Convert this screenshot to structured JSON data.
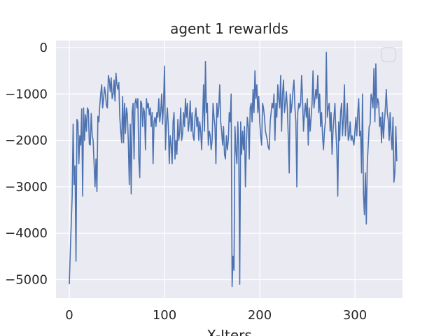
{
  "chart_data": {
    "type": "line",
    "title": "agent 1 rewarlds",
    "xlabel": "X-Iters",
    "ylabel": "",
    "xlim": [
      -14,
      350
    ],
    "ylim": [
      -5400,
      150
    ],
    "x_ticks": [
      0,
      100,
      200,
      300
    ],
    "y_ticks": [
      0,
      -1000,
      -2000,
      -3000,
      -4000,
      -5000
    ],
    "x_tick_labels": [
      "0",
      "100",
      "200",
      "300"
    ],
    "y_tick_labels": [
      "0",
      "−1000",
      "−2000",
      "−3000",
      "−4000",
      "−5000"
    ],
    "grid": true,
    "legend": "top-right, empty",
    "background_color": "#eaeaf2",
    "grid_color": "#ffffff",
    "line_color": "#4c72b0",
    "series": [
      {
        "values": [
          -5100,
          -4400,
          -3800,
          -3200,
          -1650,
          -2950,
          -2550,
          -4600,
          -1550,
          -1600,
          -2500,
          -1900,
          -2100,
          -1320,
          -3200,
          -1300,
          -2000,
          -1450,
          -1800,
          -1300,
          -1350,
          -2080,
          -2100,
          -1420,
          -1900,
          -2000,
          -2500,
          -3000,
          -2400,
          -3100,
          -1480,
          -1600,
          -1250,
          -1000,
          -800,
          -1300,
          -1100,
          -850,
          -1000,
          -1250,
          -1300,
          -600,
          -700,
          -950,
          -650,
          -1100,
          -1000,
          -700,
          -1150,
          -550,
          -800,
          -900,
          -750,
          -1500,
          -1800,
          -2050,
          -1050,
          -2050,
          -1200,
          -1850,
          -1300,
          -1450,
          -2050,
          -2950,
          -1650,
          -3150,
          -1400,
          -1200,
          -2400,
          -1200,
          -1100,
          -1300,
          -1100,
          -2400,
          -2800,
          -1150,
          -1200,
          -1700,
          -1300,
          -1400,
          -2200,
          -1100,
          -1300,
          -1200,
          -1450,
          -1300,
          -1700,
          -1400,
          -2500,
          -1600,
          -1500,
          -1700,
          -1400,
          -1500,
          -1100,
          -1600,
          -1400,
          -1000,
          -1650,
          -1200,
          -400,
          -2200,
          -1600,
          -1300,
          -1700,
          -2500,
          -1900,
          -2100,
          -2500,
          -1600,
          -1400,
          -2400,
          -2000,
          -2300,
          -1550,
          -2000,
          -1800,
          -1300,
          -2000,
          -1850,
          -1400,
          -1700,
          -1100,
          -1500,
          -1200,
          -1800,
          -1600,
          -1150,
          -1800,
          -1400,
          -1900,
          -2000,
          -1500,
          -1300,
          -1700,
          -1500,
          -2000,
          -1600,
          -1800,
          -2200,
          -1600,
          -800,
          -1800,
          -300,
          -1400,
          -1200,
          -2100,
          -1800,
          -1900,
          -2200,
          -2000,
          -1200,
          -1500,
          -1700,
          -2500,
          -1200,
          -1500,
          -1300,
          -800,
          -1600,
          -1800,
          -2100,
          -1700,
          -2300,
          -2400,
          -1900,
          -2200,
          -2000,
          -1400,
          -1600,
          -1000,
          -5150,
          -4500,
          -4800,
          -1700,
          -2200,
          -2500,
          -1600,
          -2200,
          -5100,
          -1600,
          -2300,
          -1800,
          -2200,
          -1700,
          -3000,
          -2100,
          -1500,
          -1700,
          -2400,
          -1300,
          -1200,
          -1600,
          -900,
          -1400,
          -500,
          -1100,
          -800,
          -1400,
          -1050,
          -1600,
          -1900,
          -2100,
          -1200,
          -1300,
          -1500,
          -1800,
          -1900,
          -2000,
          -2150,
          -2200,
          -1600,
          -1400,
          -1200,
          -1300,
          -1000,
          -2000,
          -1200,
          -1500,
          -800,
          -1100,
          -1300,
          -600,
          -1800,
          -1000,
          -700,
          -1400,
          -1200,
          -950,
          -1300,
          -1900,
          -2700,
          -1000,
          -1400,
          -1200,
          -900,
          -700,
          -1300,
          -1600,
          -3000,
          -1400,
          -1200,
          -1300,
          -1200,
          -600,
          -1100,
          -1800,
          -1400,
          -1200,
          -1500,
          -1100,
          -2100,
          -1300,
          -1800,
          -1500,
          -1200,
          -500,
          -1300,
          -1100,
          -900,
          -1100,
          -600,
          -1400,
          -1000,
          -1700,
          -1400,
          -1900,
          -2200,
          -1800,
          -1600,
          -100,
          -1500,
          -1300,
          -1200,
          -1800,
          -1400,
          -2300,
          -1800,
          -1500,
          -1200,
          -1800,
          -2200,
          -3200,
          -1600,
          -2000,
          -1400,
          -1200,
          -1900,
          -1500,
          -800,
          -1900,
          -1600,
          -1200,
          -2000,
          -1900,
          -1600,
          -2000,
          -1900,
          -2000,
          -2100,
          -1800,
          -1500,
          -1900,
          -1400,
          -1100,
          -1900,
          -1800,
          -2700,
          -1000,
          -3150,
          -3600,
          -2700,
          -3800,
          -2500,
          -2100,
          -1700,
          -1650,
          -1000,
          -1100,
          -1300,
          -450,
          -1600,
          -350,
          -1300,
          -1100,
          -1200,
          -1700,
          -1500,
          -2050,
          -1400,
          -1950,
          -1600,
          -1300,
          -900,
          -1400,
          -1550,
          -2000,
          -1400,
          -1900,
          -2200,
          -1500,
          -2900,
          -2700,
          -1700,
          -2450
        ]
      }
    ]
  }
}
